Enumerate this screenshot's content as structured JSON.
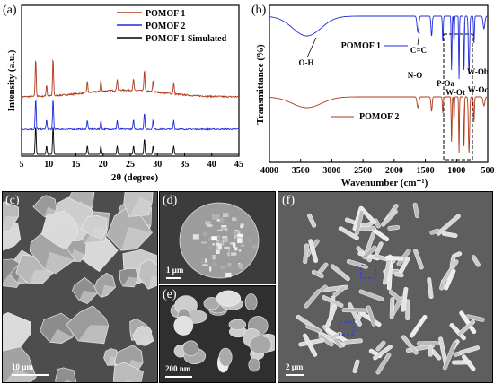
{
  "panel_a": {
    "label": "(a)",
    "ylabel": "Intensity (a.u.)",
    "xlabel": "2θ (degree)",
    "xticks": [
      "5",
      "10",
      "15",
      "20",
      "25",
      "30",
      "35",
      "40",
      "45"
    ],
    "legend": [
      {
        "name": "POMOF 1",
        "color": "#b03a1a"
      },
      {
        "name": "POMOF 2",
        "color": "#1f2bd8"
      },
      {
        "name": "POMOF 1 Simulated",
        "color": "#000000"
      }
    ]
  },
  "panel_b": {
    "label": "(b)",
    "ylabel": "Transmittance (%)",
    "xlabel": "Wavenumber (cm⁻¹)",
    "xticks": [
      "4000",
      "3500",
      "3000",
      "2500",
      "2000",
      "1500",
      "1000",
      "500"
    ],
    "series1_label": "POMOF 1",
    "series2_label": "POMOF 2",
    "annotations": {
      "oh": "O-H",
      "cc": "C=C",
      "no": "N-O",
      "poa": "P-Oa",
      "wot": "W-Ot",
      "wob": "W-Ob",
      "woc": "W-Oc"
    }
  },
  "panel_c": {
    "label": "(c)",
    "scale": "10 μm"
  },
  "panel_d": {
    "label": "(d)",
    "scale": "1 μm"
  },
  "panel_e": {
    "label": "(e)",
    "scale": "200 nm"
  },
  "panel_f": {
    "label": "(f)",
    "scale": "2 μm"
  },
  "chart_data": [
    {
      "type": "line",
      "xlabel": "2θ (degree)",
      "ylabel": "Intensity (a.u.)",
      "xlim": [
        5,
        45
      ],
      "series": [
        {
          "name": "POMOF 1",
          "peaks_2theta": [
            7.6,
            9.6,
            10.8,
            17.1,
            19.6,
            22.6,
            25.6,
            27.6,
            29.2,
            33.0
          ]
        },
        {
          "name": "POMOF 2",
          "peaks_2theta": [
            7.6,
            9.6,
            10.8,
            17.1,
            19.6,
            22.6,
            25.6,
            27.6,
            29.2,
            33.0
          ]
        },
        {
          "name": "POMOF 1 Simulated",
          "peaks_2theta": [
            7.6,
            9.6,
            10.8,
            17.1,
            19.6,
            22.6,
            25.6,
            27.6,
            29.2,
            33.0
          ]
        }
      ]
    },
    {
      "type": "line",
      "xlabel": "Wavenumber (cm⁻¹)",
      "ylabel": "Transmittance (%)",
      "xlim": [
        4000,
        500
      ],
      "series": [
        {
          "name": "POMOF 1",
          "bands_cm-1": [
            3400,
            1620,
            1400,
            1080,
            960,
            880,
            800
          ]
        },
        {
          "name": "POMOF 2",
          "bands_cm-1": [
            3400,
            1620,
            1400,
            1080,
            960,
            880,
            800
          ]
        }
      ]
    }
  ]
}
